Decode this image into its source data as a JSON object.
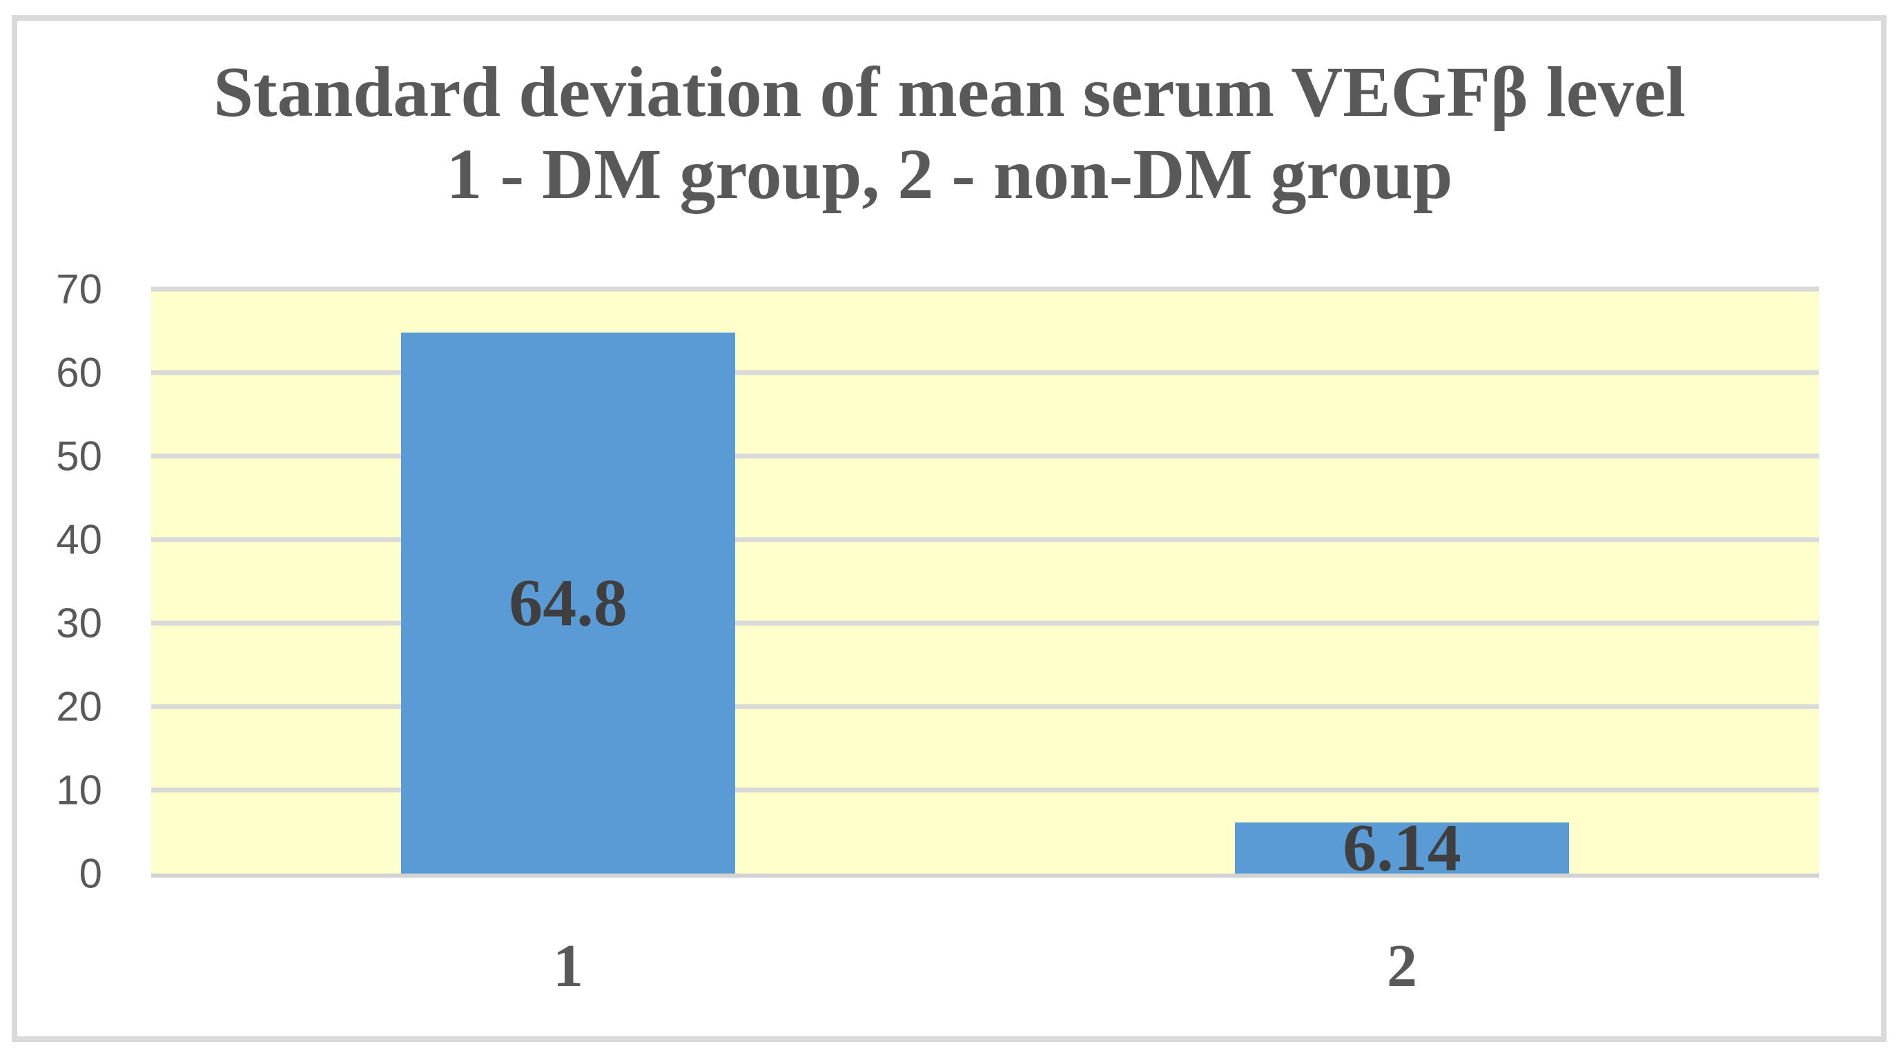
{
  "title": {
    "line1": "Standard deviation of mean serum VEGFβ level",
    "line2": "1 - DM group, 2 - non-DM group"
  },
  "chart_data": {
    "type": "bar",
    "title": "Standard deviation of mean serum VEGFβ level",
    "subtitle": "1 - DM group, 2 - non-DM group",
    "categories": [
      "1",
      "2"
    ],
    "series": [
      {
        "name": "Standard deviation of mean serum VEGFβ level",
        "values": [
          64.8,
          6.14
        ]
      }
    ],
    "value_labels": [
      "64.8",
      "6.14"
    ],
    "xlabel": "",
    "ylabel": "",
    "ylim": [
      0,
      70
    ],
    "yticks": [
      0,
      10,
      20,
      30,
      40,
      50,
      60,
      70
    ],
    "grid": "horizontal",
    "legend": "none",
    "data_labels": "inside-center",
    "colors": {
      "bar_fill": "#5B9BD5",
      "plot_background": "#FFFFCC",
      "gridline": "#D9D9D9",
      "axis_line": "#D3D3D3",
      "title_text": "#595959",
      "tick_text": "#595959",
      "data_label_text": "#3F3F3F",
      "frame_border": "#D9D9D9",
      "page_background": "#FFFFFF"
    }
  }
}
